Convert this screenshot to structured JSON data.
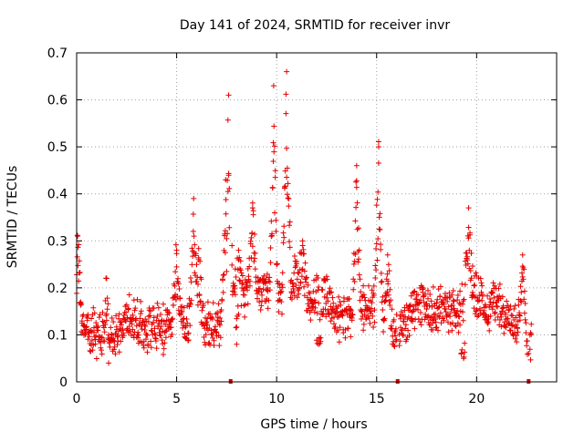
{
  "chart_data": {
    "type": "scatter",
    "title": "Day 141 of 2024, SRMTID for receiver invr",
    "xlabel": "GPS time / hours",
    "ylabel": "SRMTID / TECUs",
    "xlim": [
      0,
      24
    ],
    "ylim": [
      0,
      0.7
    ],
    "x_ticks": [
      0,
      5,
      10,
      15,
      20
    ],
    "x_tick_labels": [
      "0",
      "5",
      "10",
      "15",
      "20"
    ],
    "y_ticks": [
      0,
      0.1,
      0.2,
      0.3,
      0.4,
      0.5,
      0.6,
      0.7
    ],
    "y_tick_labels": [
      "0",
      "0.1",
      "0.2",
      "0.3",
      "0.4",
      "0.5",
      "0.6",
      "0.7"
    ],
    "grid": true,
    "marker": "plus",
    "color": "#e60000",
    "sampling_minutes": 2,
    "series": [
      {
        "name": "SRMTID",
        "baseline": {
          "x": [
            0,
            0.3,
            1.0,
            1.5,
            2.0,
            2.5,
            3.0,
            3.5,
            4.0,
            4.5,
            5.0,
            5.5,
            6.0,
            6.5,
            7.0,
            7.5,
            8.0,
            8.5,
            9.0,
            9.5,
            10.0,
            10.5,
            11.0,
            11.5,
            12.0,
            12.5,
            13.0,
            13.5,
            14.0,
            14.5,
            15.0,
            15.5,
            16.0,
            16.5,
            17.0,
            17.5,
            18.0,
            18.5,
            19.0,
            19.5,
            20.0,
            20.5,
            21.0,
            21.5,
            22.0,
            22.5
          ],
          "y": [
            0.13,
            0.12,
            0.1,
            0.09,
            0.1,
            0.14,
            0.13,
            0.11,
            0.12,
            0.11,
            0.15,
            0.12,
            0.16,
            0.12,
            0.12,
            0.14,
            0.18,
            0.19,
            0.2,
            0.19,
            0.16,
            0.21,
            0.22,
            0.17,
            0.18,
            0.19,
            0.13,
            0.13,
            0.15,
            0.16,
            0.15,
            0.14,
            0.1,
            0.13,
            0.16,
            0.16,
            0.15,
            0.16,
            0.14,
            0.2,
            0.19,
            0.15,
            0.18,
            0.14,
            0.11,
            0.09
          ]
        },
        "peaks": [
          {
            "x": 0.05,
            "y": 0.31
          },
          {
            "x": 1.5,
            "y": 0.22
          },
          {
            "x": 5.0,
            "y": 0.28
          },
          {
            "x": 5.85,
            "y": 0.39
          },
          {
            "x": 6.1,
            "y": 0.26
          },
          {
            "x": 7.45,
            "y": 0.43
          },
          {
            "x": 7.6,
            "y": 0.61
          },
          {
            "x": 8.1,
            "y": 0.28
          },
          {
            "x": 8.8,
            "y": 0.37
          },
          {
            "x": 9.85,
            "y": 0.63
          },
          {
            "x": 10.5,
            "y": 0.66
          },
          {
            "x": 11.3,
            "y": 0.29
          },
          {
            "x": 14.0,
            "y": 0.46
          },
          {
            "x": 15.1,
            "y": 0.5
          },
          {
            "x": 15.55,
            "y": 0.27
          },
          {
            "x": 19.6,
            "y": 0.37
          },
          {
            "x": 22.3,
            "y": 0.27
          }
        ],
        "dips": [
          {
            "x": 1.6,
            "y": 0.04
          },
          {
            "x": 8.0,
            "y": 0.08
          },
          {
            "x": 12.1,
            "y": 0.08
          },
          {
            "x": 19.35,
            "y": 0.05
          },
          {
            "x": 22.6,
            "y": 0.06
          }
        ]
      }
    ],
    "gap_markers": [
      7.7,
      16.05,
      22.6
    ]
  }
}
